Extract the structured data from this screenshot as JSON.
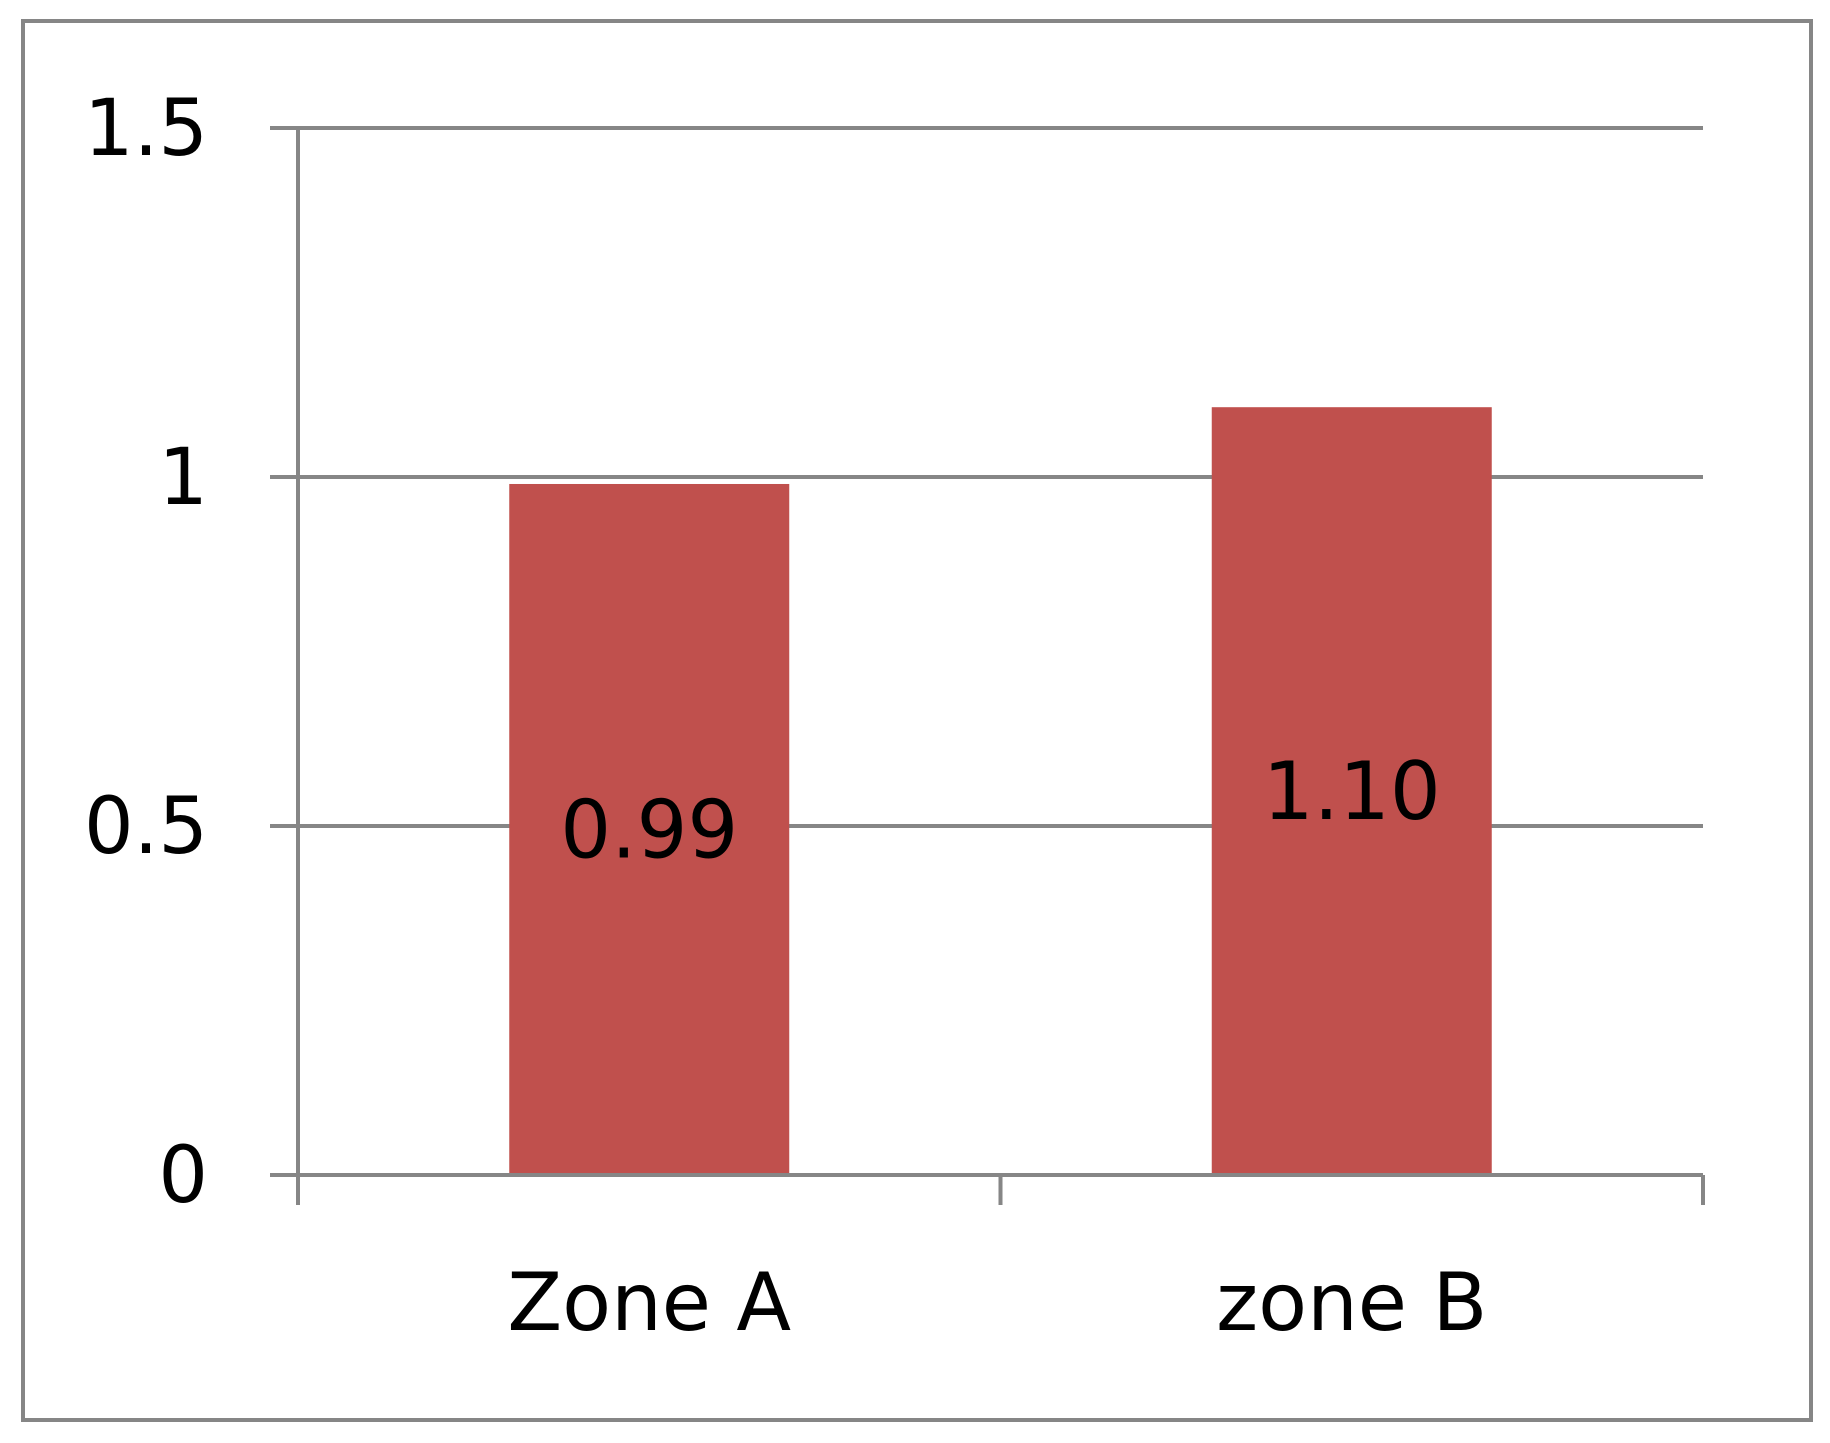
{
  "chart_data": {
    "type": "bar",
    "categories": [
      "Zone A",
      "zone B"
    ],
    "values": [
      0.99,
      1.1
    ],
    "data_labels": [
      "0.99",
      "1.10"
    ],
    "yticks": [
      {
        "value": 0,
        "label": "0"
      },
      {
        "value": 0.5,
        "label": "0.5"
      },
      {
        "value": 1,
        "label": "1"
      },
      {
        "value": 1.5,
        "label": "1.5"
      }
    ],
    "ylim": [
      0,
      1.5
    ],
    "grid": true,
    "legend": "none",
    "title": "",
    "xlabel": "",
    "ylabel": "",
    "colors": {
      "bar": "#C0504D",
      "axis": "#868686",
      "grid": "#868686",
      "frame": "#868686",
      "text": "#000000"
    }
  }
}
